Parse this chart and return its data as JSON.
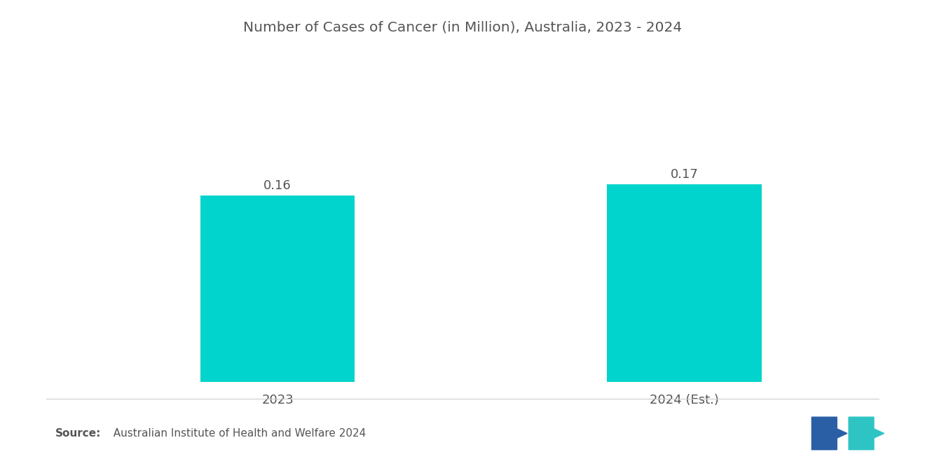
{
  "title": "Number of Cases of Cancer (in Million), Australia, 2023 - 2024",
  "categories": [
    "2023",
    "2024 (Est.)"
  ],
  "values": [
    0.16,
    0.17
  ],
  "bar_color": "#00D4CC",
  "background_color": "#ffffff",
  "title_fontsize": 14.5,
  "label_fontsize": 13,
  "value_fontsize": 13,
  "source_bold": "Source:",
  "source_normal": "  Australian Institute of Health and Welfare 2024",
  "ylim": [
    0,
    0.26
  ],
  "bar_width": 0.38,
  "x_positions": [
    1,
    2
  ],
  "xlim": [
    0.5,
    2.5
  ],
  "logo_left_color": "#2A5FA5",
  "logo_right_color": "#2EC4C4"
}
